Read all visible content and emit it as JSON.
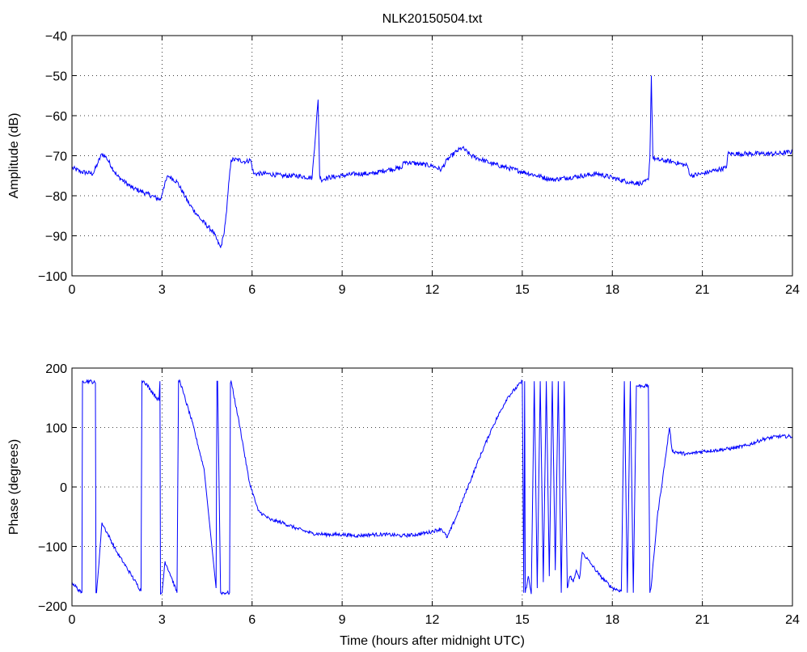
{
  "figure_title": "NLK20150504.txt",
  "chart_data": [
    {
      "type": "line",
      "title": "NLK20150504.txt",
      "xlabel": "",
      "ylabel": "Amplitude (dB)",
      "xlim": [
        0,
        24
      ],
      "ylim": [
        -100,
        -40
      ],
      "xticks": [
        0,
        3,
        6,
        9,
        12,
        15,
        18,
        21,
        24
      ],
      "yticks": [
        -100,
        -90,
        -80,
        -70,
        -60,
        -50,
        -40
      ],
      "grid": true,
      "line_color": "#0000ff",
      "noise": 0.6,
      "series": [
        {
          "x": [
            0,
            0.3,
            0.7,
            0.85,
            1.0,
            1.15,
            1.5,
            2.0,
            2.5,
            2.95,
            3.05,
            3.2,
            3.5,
            3.9,
            4.3,
            4.7,
            4.95,
            5.05,
            5.15,
            5.2,
            5.3,
            5.5,
            5.8,
            5.95,
            6.05,
            6.5,
            7.0,
            7.5,
            8.0,
            8.2,
            8.25,
            8.3,
            8.5,
            9.0,
            9.5,
            10.0,
            10.5,
            11.0,
            11.05,
            11.5,
            12.0,
            12.3,
            12.5,
            12.8,
            13.0,
            13.3,
            14.0,
            14.5,
            15.0,
            15.5,
            16.0,
            16.5,
            17.0,
            17.5,
            18.0,
            18.5,
            19.0,
            19.2,
            19.25,
            19.3,
            19.35,
            19.5,
            20.0,
            20.5,
            20.6,
            21.0,
            21.5,
            21.8,
            21.85,
            22.5,
            23.0,
            23.5,
            24.0
          ],
          "y": [
            -73,
            -74,
            -74.5,
            -72,
            -69.5,
            -70.5,
            -75,
            -78,
            -79.5,
            -81,
            -78,
            -75,
            -76.5,
            -82,
            -86,
            -89,
            -93,
            -90,
            -84,
            -79,
            -71,
            -71,
            -71.5,
            -71,
            -74.5,
            -74.5,
            -75,
            -75,
            -75.5,
            -56,
            -75,
            -76,
            -75.5,
            -75,
            -74.5,
            -74.5,
            -73.5,
            -73,
            -71.5,
            -72,
            -72.5,
            -73.5,
            -71,
            -69,
            -68,
            -70,
            -72,
            -73,
            -74,
            -75,
            -76,
            -75.5,
            -75,
            -74.5,
            -75.5,
            -76.5,
            -77,
            -76,
            -70.5,
            -50,
            -70.5,
            -71,
            -71.5,
            -72.5,
            -75,
            -74.5,
            -73.5,
            -73,
            -69.5,
            -69.5,
            -69.5,
            -69.5,
            -69
          ]
        }
      ]
    },
    {
      "type": "line",
      "xlabel": "Time (hours after midnight UTC)",
      "ylabel": "Phase (degrees)",
      "xlim": [
        0,
        24
      ],
      "ylim": [
        -200,
        200
      ],
      "xticks": [
        0,
        3,
        6,
        9,
        12,
        15,
        18,
        21,
        24
      ],
      "yticks": [
        -200,
        -100,
        0,
        100,
        200
      ],
      "grid": true,
      "line_color": "#0000ff",
      "noise": 3,
      "series": [
        {
          "x": [
            0,
            0.3,
            0.33,
            0.35,
            0.6,
            0.78,
            0.8,
            0.82,
            1.0,
            1.5,
            2.0,
            2.3,
            2.33,
            2.4,
            2.9,
            2.93,
            2.95,
            3.0,
            3.1,
            3.3,
            3.5,
            3.55,
            3.6,
            3.7,
            4.0,
            4.4,
            4.8,
            4.83,
            4.85,
            4.95,
            5.15,
            5.25,
            5.28,
            5.3,
            5.6,
            5.9,
            6.2,
            6.6,
            7.0,
            7.5,
            8.0,
            8.5,
            9.0,
            9.5,
            10.0,
            10.5,
            11.0,
            11.5,
            12.0,
            12.3,
            12.5,
            12.8,
            13.5,
            14.0,
            14.5,
            15.0,
            15.05,
            15.08,
            15.1,
            15.2,
            15.3,
            15.4,
            15.5,
            15.6,
            15.7,
            15.8,
            15.9,
            16.0,
            16.1,
            16.2,
            16.3,
            16.4,
            16.5,
            16.6,
            16.7,
            16.8,
            16.9,
            17.0,
            17.3,
            17.6,
            18.0,
            18.3,
            18.4,
            18.5,
            18.6,
            18.7,
            18.8,
            19.0,
            19.2,
            19.25,
            19.3,
            19.5,
            19.8,
            19.9,
            20.0,
            20.5,
            21.0,
            21.5,
            22.0,
            22.5,
            23.0,
            23.5,
            24.0
          ],
          "y": [
            -160,
            -178,
            -178,
            178,
            178,
            175,
            -178,
            -178,
            -60,
            -110,
            -150,
            -175,
            178,
            178,
            145,
            178,
            -180,
            -178,
            -125,
            -150,
            -178,
            178,
            178,
            160,
            110,
            30,
            -170,
            178,
            178,
            -178,
            -178,
            -178,
            175,
            178,
            100,
            10,
            -40,
            -55,
            -60,
            -70,
            -78,
            -80,
            -80,
            -82,
            -80,
            -80,
            -82,
            -80,
            -75,
            -70,
            -85,
            -50,
            40,
            100,
            150,
            178,
            -178,
            178,
            -178,
            -150,
            -180,
            178,
            -170,
            178,
            -160,
            178,
            -150,
            178,
            -140,
            178,
            -178,
            178,
            -170,
            -150,
            -160,
            -140,
            -155,
            -110,
            -130,
            -150,
            -170,
            -175,
            178,
            -178,
            178,
            -178,
            170,
            170,
            170,
            -178,
            -165,
            -50,
            60,
            100,
            60,
            55,
            60,
            62,
            65,
            70,
            80,
            85,
            85
          ]
        }
      ]
    }
  ]
}
